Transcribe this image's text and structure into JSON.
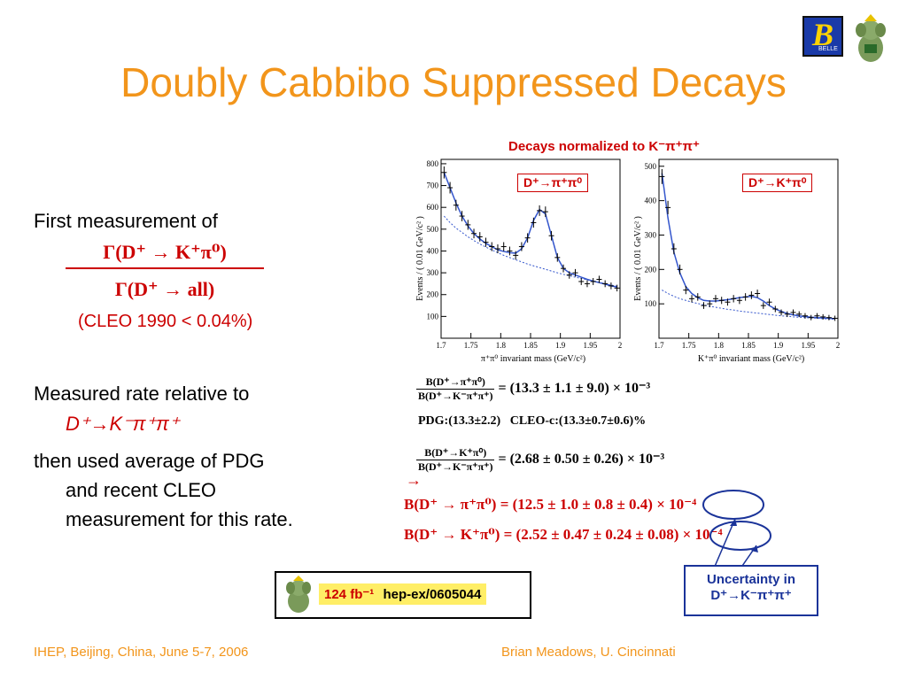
{
  "title": "Doubly Cabbibo Suppressed Decays",
  "logos": {
    "belle_letter": "B",
    "belle_text": "BELLE"
  },
  "left": {
    "first_measurement": "First measurement of",
    "ratio_num": "Γ(D⁺ → K⁺π⁰)",
    "ratio_den": "Γ(D⁺ → all)",
    "cleo": "(CLEO 1990 < 0.04%)",
    "measured_rate": "Measured rate relative to",
    "rel_mode": "D⁺→K⁻π⁺π⁺",
    "then_used": "then used average of PDG",
    "and_recent": "and recent CLEO",
    "measurement_for": "measurement for this rate."
  },
  "plots_header": "Decays normalized to K⁻π⁺π⁺",
  "chart_data": [
    {
      "type": "scatter",
      "label": "D⁺→π⁺π⁰",
      "xlabel": "π⁺π⁰ invariant mass (GeV/c²)",
      "ylabel": "Events / ( 0.01 GeV/c² )",
      "xlim": [
        1.7,
        2.0
      ],
      "ylim": [
        0,
        820
      ],
      "xticks": [
        "1.7",
        "1.75",
        "1.8",
        "1.85",
        "1.9",
        "1.95",
        "2"
      ],
      "yticks": [
        "100",
        "200",
        "300",
        "400",
        "500",
        "600",
        "700",
        "800"
      ],
      "x": [
        1.705,
        1.715,
        1.725,
        1.735,
        1.745,
        1.755,
        1.765,
        1.775,
        1.785,
        1.795,
        1.805,
        1.815,
        1.825,
        1.835,
        1.845,
        1.855,
        1.865,
        1.875,
        1.885,
        1.895,
        1.905,
        1.915,
        1.925,
        1.935,
        1.945,
        1.955,
        1.965,
        1.975,
        1.985,
        1.995
      ],
      "y": [
        760,
        690,
        610,
        560,
        520,
        480,
        465,
        440,
        420,
        410,
        420,
        400,
        380,
        420,
        460,
        530,
        585,
        580,
        470,
        370,
        320,
        290,
        300,
        260,
        250,
        260,
        270,
        250,
        240,
        230
      ],
      "fit": [
        760,
        690,
        620,
        560,
        515,
        480,
        455,
        435,
        420,
        405,
        398,
        392,
        390,
        410,
        460,
        540,
        590,
        570,
        470,
        370,
        320,
        300,
        290,
        280,
        270,
        262,
        255,
        248,
        240,
        235
      ],
      "background": [
        560,
        530,
        505,
        485,
        465,
        448,
        432,
        418,
        405,
        392,
        380,
        370,
        360,
        350,
        340,
        332,
        324,
        316,
        308,
        300,
        293,
        286,
        280,
        274,
        268,
        262,
        256,
        250,
        244,
        238
      ]
    },
    {
      "type": "scatter",
      "label": "D⁺→K⁺π⁰",
      "xlabel": "K⁺π⁰ invariant mass (GeV/c²)",
      "ylabel": "Events / ( 0.01 GeV/c² )",
      "xlim": [
        1.7,
        2.0
      ],
      "ylim": [
        0,
        520
      ],
      "xticks": [
        "1.7",
        "1.75",
        "1.8",
        "1.85",
        "1.9",
        "1.95",
        "2"
      ],
      "yticks": [
        "100",
        "200",
        "300",
        "400",
        "500"
      ],
      "x": [
        1.705,
        1.715,
        1.725,
        1.735,
        1.745,
        1.755,
        1.765,
        1.775,
        1.785,
        1.795,
        1.805,
        1.815,
        1.825,
        1.835,
        1.845,
        1.855,
        1.865,
        1.875,
        1.885,
        1.895,
        1.905,
        1.915,
        1.925,
        1.935,
        1.945,
        1.955,
        1.965,
        1.975,
        1.985,
        1.995
      ],
      "y": [
        470,
        380,
        260,
        200,
        140,
        115,
        120,
        95,
        100,
        115,
        110,
        105,
        115,
        110,
        120,
        125,
        130,
        95,
        105,
        85,
        75,
        70,
        75,
        70,
        65,
        60,
        65,
        62,
        60,
        58
      ],
      "fit": [
        480,
        350,
        250,
        190,
        150,
        130,
        118,
        110,
        108,
        108,
        110,
        112,
        115,
        118,
        120,
        122,
        118,
        108,
        95,
        85,
        78,
        72,
        68,
        65,
        63,
        61,
        60,
        59,
        58,
        57
      ],
      "background": [
        140,
        130,
        122,
        115,
        110,
        105,
        101,
        97,
        93,
        90,
        87,
        84,
        82,
        79,
        77,
        75,
        73,
        71,
        69,
        67,
        65,
        64,
        62,
        61,
        60,
        59,
        58,
        57,
        56,
        55
      ]
    }
  ],
  "equations": {
    "eq1_num": "B(D⁺→π⁺π⁰)",
    "eq1_den": "B(D⁺→K⁻π⁺π⁺)",
    "eq1_val": "= (13.3 ± 1.1 ± 9.0) × 10⁻³",
    "pdg_line": "PDG:(13.3±2.2)   CLEO-c:(13.3±0.7±0.6)%",
    "eq2_num": "B(D⁺→K⁺π⁰)",
    "eq2_den": "B(D⁺→K⁻π⁺π⁺)",
    "eq2_val": "= (2.68 ± 0.50 ± 0.26) × 10⁻³",
    "arrow": "→",
    "res1": "B(D⁺ → π⁺π⁰) = (12.5 ± 1.0 ± 0.8 ± 0.4) × 10⁻⁴",
    "res2": "B(D⁺ → K⁺π⁰) = (2.52 ± 0.47 ± 0.24 ± 0.08) × 10⁻⁴"
  },
  "reference": {
    "lumi": "124 fb⁻¹",
    "arxiv": "hep-ex/0605044"
  },
  "uncertainty": {
    "line1": "Uncertainty in",
    "line2": "D⁺→K⁻π⁺π⁺"
  },
  "footer": {
    "left": "IHEP, Beijing, China, June 5-7, 2006",
    "right": "Brian Meadows, U. Cincinnati"
  }
}
